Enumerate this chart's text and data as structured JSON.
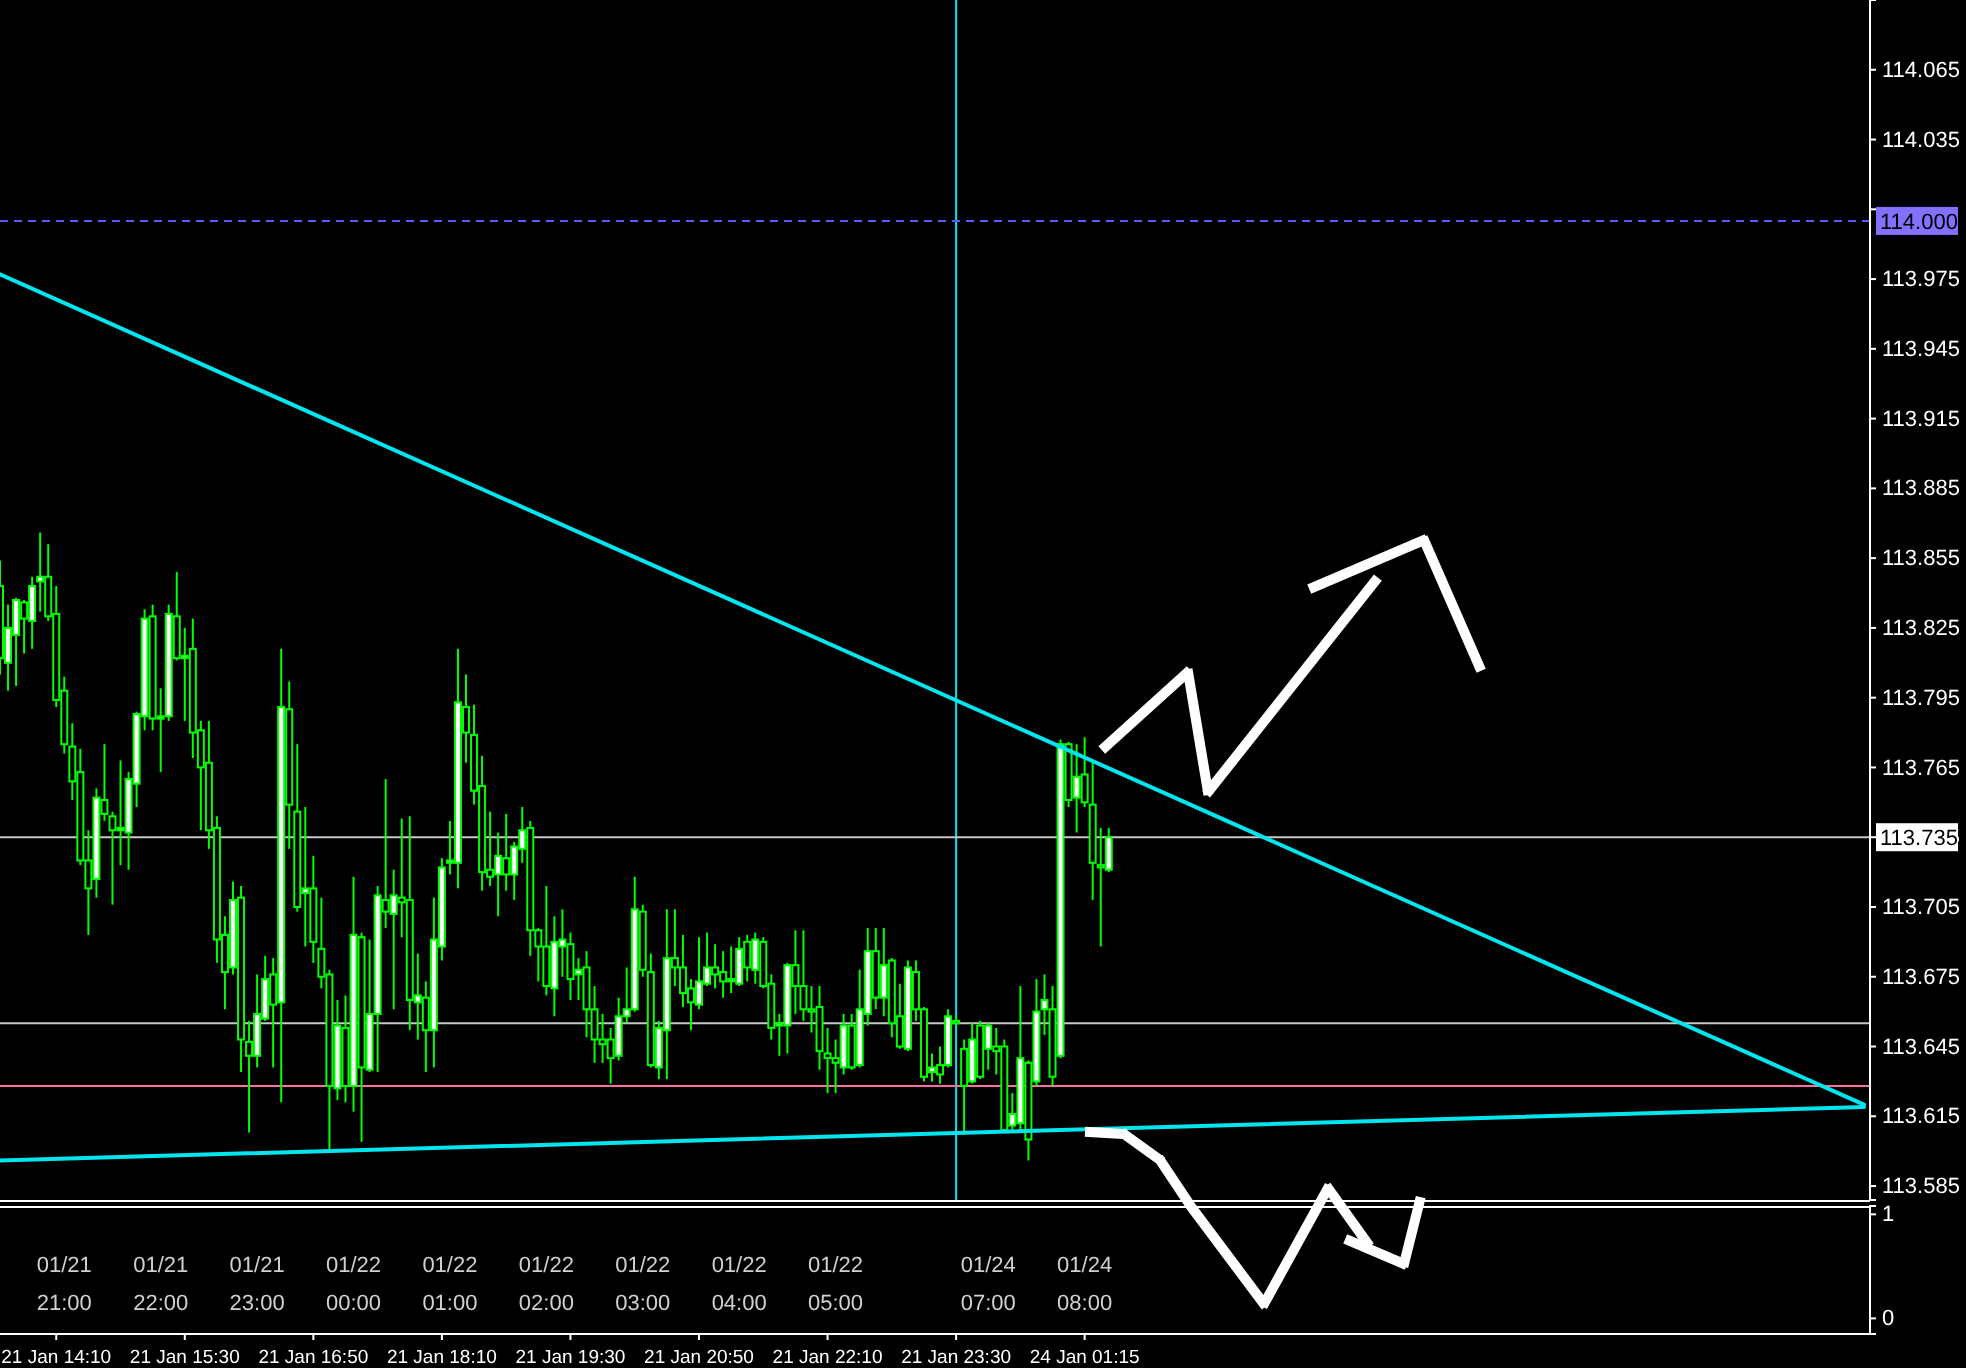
{
  "chart_data": [
    {
      "type": "candlestick",
      "categories": [
        null,
        null,
        null,
        null,
        null,
        null,
        null,
        "21 Jan 14:10",
        null,
        null,
        null,
        null,
        null,
        null,
        null,
        null,
        null,
        null,
        null,
        null,
        null,
        null,
        null,
        "21 Jan 15:30",
        null,
        null,
        null,
        null,
        null,
        null,
        null,
        null,
        null,
        null,
        null,
        null,
        null,
        null,
        null,
        "21 Jan 16:50",
        null,
        null,
        null,
        null,
        null,
        null,
        null,
        null,
        null,
        null,
        null,
        null,
        null,
        null,
        null,
        "21 Jan 18:10",
        null,
        null,
        null,
        null,
        null,
        null,
        null,
        null,
        null,
        null,
        null,
        null,
        null,
        null,
        null,
        "21 Jan 19:30",
        null,
        null,
        null,
        null,
        null,
        null,
        null,
        null,
        null,
        null,
        null,
        null,
        null,
        null,
        null,
        "21 Jan 20:50",
        null,
        null,
        null,
        null,
        null,
        null,
        null,
        null,
        null,
        null,
        null,
        null,
        null,
        null,
        null,
        "21 Jan 22:10",
        null,
        null,
        null,
        null,
        null,
        null,
        null,
        null,
        null,
        null,
        null,
        null,
        null,
        null,
        null,
        "21 Jan 23:30",
        null,
        null,
        null,
        null,
        null,
        null,
        null,
        null,
        null,
        null,
        null,
        null,
        null,
        null,
        null,
        "24 Jan 01:15",
        null,
        null,
        null,
        null,
        null,
        null,
        null,
        null,
        null,
        null,
        null,
        null,
        null,
        null,
        null,
        null,
        null,
        null,
        null,
        null,
        null,
        null,
        null,
        null,
        null,
        null,
        null,
        null,
        null,
        null,
        null,
        null,
        null,
        null,
        null,
        null,
        null,
        null,
        null,
        null,
        null,
        null,
        null,
        null,
        null,
        null,
        null,
        null,
        null,
        null,
        null,
        null,
        null,
        null,
        null,
        null,
        null,
        null,
        null,
        null,
        null,
        null,
        null,
        null,
        null,
        null,
        null,
        null,
        null,
        null,
        null,
        null,
        null,
        null,
        null,
        null,
        null,
        null,
        null,
        null,
        null,
        null,
        null,
        null,
        null,
        null,
        null,
        null,
        null,
        null,
        null,
        null,
        null,
        null,
        null,
        null,
        null
      ],
      "series": [
        {
          "color": "#00ff00",
          "ohlc": [
            [
              113.843,
              113.854,
              113.805,
              113.812
            ],
            [
              113.81,
              113.835,
              113.798,
              113.825
            ],
            [
              113.822,
              113.838,
              113.8,
              113.837
            ],
            [
              113.836,
              113.837,
              113.814,
              113.829
            ],
            [
              113.828,
              113.847,
              113.816,
              113.843
            ],
            [
              113.845,
              113.866,
              113.832,
              113.847
            ],
            [
              113.847,
              113.861,
              113.828,
              113.83
            ],
            [
              113.831,
              113.843,
              113.791,
              113.794
            ],
            [
              113.798,
              113.804,
              113.771,
              113.775
            ],
            [
              113.774,
              113.784,
              113.751,
              113.759
            ],
            [
              113.763,
              113.773,
              113.723,
              113.725
            ],
            [
              113.725,
              113.738,
              113.693,
              113.713
            ],
            [
              113.717,
              113.756,
              113.709,
              113.752
            ],
            [
              113.751,
              113.775,
              113.742,
              113.745
            ],
            [
              113.744,
              113.746,
              113.706,
              113.738
            ],
            [
              113.738,
              113.768,
              113.723,
              113.739
            ],
            [
              113.737,
              113.763,
              113.721,
              113.76
            ],
            [
              113.758,
              113.789,
              113.748,
              113.788
            ],
            [
              113.787,
              113.833,
              113.781,
              113.829
            ],
            [
              113.83,
              113.835,
              113.781,
              113.786
            ],
            [
              113.786,
              113.799,
              113.763,
              113.787
            ],
            [
              113.787,
              113.835,
              113.785,
              113.831
            ],
            [
              113.83,
              113.849,
              113.811,
              113.812
            ],
            [
              113.812,
              113.825,
              113.785,
              113.813
            ],
            [
              113.816,
              113.829,
              113.769,
              113.78
            ],
            [
              113.781,
              113.785,
              113.738,
              113.765
            ],
            [
              113.767,
              113.785,
              113.73,
              113.738
            ],
            [
              113.739,
              113.744,
              113.681,
              113.691
            ],
            [
              113.693,
              113.701,
              113.661,
              113.677
            ],
            [
              113.679,
              113.716,
              113.676,
              113.708
            ],
            [
              113.709,
              113.714,
              113.634,
              113.648
            ],
            [
              113.647,
              113.656,
              113.608,
              113.641
            ],
            [
              113.641,
              113.676,
              113.636,
              113.659
            ],
            [
              113.657,
              113.684,
              113.656,
              113.674
            ],
            [
              113.676,
              113.683,
              113.636,
              113.663
            ],
            [
              113.664,
              113.816,
              113.621,
              113.791
            ],
            [
              113.79,
              113.802,
              113.73,
              113.749
            ],
            [
              113.746,
              113.775,
              113.703,
              113.705
            ],
            [
              113.711,
              113.748,
              113.688,
              113.713
            ],
            [
              113.713,
              113.727,
              113.681,
              113.69
            ],
            [
              113.687,
              113.709,
              113.67,
              113.675
            ],
            [
              113.676,
              113.678,
              113.6,
              113.628
            ],
            [
              113.627,
              113.665,
              113.622,
              113.654
            ],
            [
              113.653,
              113.667,
              113.621,
              113.628
            ],
            [
              113.628,
              113.718,
              113.617,
              113.693
            ],
            [
              113.692,
              113.694,
              113.604,
              113.636
            ],
            [
              113.635,
              113.691,
              113.634,
              113.659
            ],
            [
              113.659,
              113.714,
              113.634,
              113.71
            ],
            [
              113.708,
              113.76,
              113.696,
              113.703
            ],
            [
              113.702,
              113.721,
              113.661,
              113.71
            ],
            [
              113.709,
              113.743,
              113.692,
              113.707
            ],
            [
              113.708,
              113.744,
              113.652,
              113.665
            ],
            [
              113.664,
              113.685,
              113.648,
              113.667
            ],
            [
              113.666,
              113.673,
              113.634,
              113.652
            ],
            [
              113.652,
              113.709,
              113.636,
              113.691
            ],
            [
              113.688,
              113.726,
              113.682,
              113.722
            ],
            [
              113.724,
              113.742,
              113.719,
              113.725
            ],
            [
              113.724,
              113.816,
              113.713,
              113.793
            ],
            [
              113.791,
              113.805,
              113.767,
              113.78
            ],
            [
              113.779,
              113.792,
              113.749,
              113.755
            ],
            [
              113.757,
              113.77,
              113.712,
              113.72
            ],
            [
              113.721,
              113.746,
              113.714,
              113.718
            ],
            [
              113.719,
              113.737,
              113.701,
              113.727
            ],
            [
              113.726,
              113.745,
              113.712,
              113.719
            ],
            [
              113.719,
              113.733,
              113.708,
              113.731
            ],
            [
              113.73,
              113.748,
              113.724,
              113.738
            ],
            [
              113.739,
              113.742,
              113.684,
              113.695
            ],
            [
              113.695,
              113.696,
              113.673,
              113.688
            ],
            [
              113.688,
              113.714,
              113.667,
              113.671
            ],
            [
              113.67,
              113.701,
              113.658,
              113.69
            ],
            [
              113.688,
              113.704,
              113.675,
              113.691
            ],
            [
              113.689,
              113.694,
              113.665,
              113.674
            ],
            [
              113.676,
              113.683,
              113.665,
              113.678
            ],
            [
              113.679,
              113.686,
              113.649,
              113.661
            ],
            [
              113.661,
              113.671,
              113.638,
              113.648
            ],
            [
              113.648,
              113.659,
              113.638,
              113.646
            ],
            [
              113.648,
              113.653,
              113.629,
              113.64
            ],
            [
              113.641,
              113.666,
              113.639,
              113.658
            ],
            [
              113.658,
              113.679,
              113.655,
              113.661
            ],
            [
              113.661,
              113.718,
              113.66,
              113.704
            ],
            [
              113.703,
              113.706,
              113.675,
              113.678
            ],
            [
              113.677,
              113.685,
              113.636,
              113.637
            ],
            [
              113.636,
              113.656,
              113.631,
              113.653
            ],
            [
              113.652,
              113.704,
              113.631,
              113.683
            ],
            [
              113.683,
              113.704,
              113.671,
              113.679
            ],
            [
              113.679,
              113.693,
              113.662,
              113.668
            ],
            [
              113.67,
              113.674,
              113.652,
              113.664
            ],
            [
              113.663,
              113.692,
              113.661,
              113.673
            ],
            [
              113.672,
              113.694,
              113.671,
              113.679
            ],
            [
              113.679,
              113.689,
              113.67,
              113.676
            ],
            [
              113.677,
              113.686,
              113.666,
              113.673
            ],
            [
              113.673,
              113.688,
              113.668,
              113.674
            ],
            [
              113.672,
              113.692,
              113.671,
              113.687
            ],
            [
              113.69,
              113.693,
              113.673,
              113.679
            ],
            [
              113.678,
              113.694,
              113.672,
              113.691
            ],
            [
              113.69,
              113.692,
              113.67,
              113.671
            ],
            [
              113.672,
              113.676,
              113.648,
              113.653
            ],
            [
              113.654,
              113.659,
              113.641,
              113.655
            ],
            [
              113.654,
              113.681,
              113.642,
              113.68
            ],
            [
              113.68,
              113.695,
              113.659,
              113.671
            ],
            [
              113.671,
              113.695,
              113.656,
              113.661
            ],
            [
              113.661,
              113.671,
              113.651,
              113.66
            ],
            [
              113.662,
              113.671,
              113.635,
              113.643
            ],
            [
              113.642,
              113.653,
              113.625,
              113.64
            ],
            [
              113.64,
              113.648,
              113.625,
              113.638
            ],
            [
              113.636,
              113.659,
              113.633,
              113.654
            ],
            [
              113.654,
              113.659,
              113.635,
              113.636
            ],
            [
              113.637,
              113.678,
              113.636,
              113.661
            ],
            [
              113.659,
              113.696,
              113.654,
              113.686
            ],
            [
              113.686,
              113.696,
              113.661,
              113.666
            ],
            [
              113.666,
              113.696,
              113.658,
              113.68
            ],
            [
              113.682,
              113.683,
              113.649,
              113.655
            ],
            [
              113.658,
              113.672,
              113.644,
              113.645
            ],
            [
              113.644,
              113.682,
              113.643,
              113.679
            ],
            [
              113.677,
              113.682,
              113.656,
              113.661
            ],
            [
              113.661,
              113.662,
              113.63,
              113.632
            ],
            [
              113.634,
              113.642,
              113.63,
              113.636
            ],
            [
              113.637,
              113.645,
              113.629,
              113.633
            ],
            [
              113.637,
              113.661,
              113.636,
              113.658
            ],
            [
              113.656,
              113.658,
              113.654,
              113.655
            ],
            [
              113.644,
              113.648,
              113.607,
              113.628
            ],
            [
              113.63,
              113.655,
              113.629,
              113.648
            ],
            [
              113.654,
              113.656,
              113.631,
              113.632
            ],
            [
              113.644,
              113.655,
              113.635,
              113.654
            ],
            [
              113.645,
              113.653,
              113.633,
              113.643
            ],
            [
              113.645,
              113.648,
              113.608,
              113.609
            ],
            [
              113.611,
              113.625,
              113.608,
              113.616
            ],
            [
              113.612,
              113.671,
              113.608,
              113.64
            ],
            [
              113.638,
              113.639,
              113.596,
              113.605
            ],
            [
              113.63,
              113.674,
              113.628,
              113.66
            ],
            [
              113.661,
              113.676,
              113.65,
              113.665
            ],
            [
              113.661,
              113.671,
              113.628,
              113.632
            ],
            [
              113.641,
              113.777,
              113.64,
              113.775
            ],
            [
              113.775,
              113.776,
              113.748,
              113.751
            ],
            [
              113.752,
              113.775,
              113.737,
              113.761
            ],
            [
              113.762,
              113.778,
              113.748,
              113.75
            ],
            [
              113.749,
              113.767,
              113.708,
              113.724
            ],
            [
              113.723,
              113.739,
              113.688,
              113.722
            ],
            [
              113.721,
              113.739,
              113.72,
              113.735
            ],
            null,
            null,
            null,
            null,
            null,
            null,
            null,
            null,
            null,
            null,
            null,
            null,
            null,
            null,
            null,
            null,
            null,
            null,
            null,
            null,
            null,
            null,
            null,
            null,
            null,
            null,
            null,
            null,
            null,
            null,
            null,
            null,
            null,
            null,
            null,
            null,
            null,
            null,
            null,
            null,
            null,
            null,
            null,
            null,
            null,
            null,
            null,
            null,
            null,
            null,
            null,
            null,
            null,
            null,
            null,
            null,
            null,
            null,
            null,
            null,
            null,
            null,
            null,
            null,
            null,
            null,
            null,
            null,
            null,
            null,
            null,
            null,
            null,
            null,
            null,
            null,
            null,
            null,
            null,
            null,
            null,
            null,
            null,
            null,
            null,
            null,
            null,
            null,
            null,
            null,
            null,
            null,
            null,
            null
          ]
        },
        {
          "type": "line",
          "color": "#00e5ee",
          "values": [
            113.977,
            null,
            null,
            null,
            null,
            null,
            null,
            null,
            null,
            null,
            null,
            null,
            null,
            null,
            null,
            null,
            null,
            null,
            null,
            null,
            null,
            null,
            null,
            null,
            null,
            null,
            null,
            null,
            null,
            null,
            null,
            null,
            null,
            null,
            null,
            null,
            null,
            null,
            null,
            null,
            null,
            null,
            null,
            null,
            null,
            null,
            null,
            null,
            null,
            null,
            null,
            null,
            null,
            null,
            null,
            null,
            null,
            null,
            null,
            null,
            null,
            null,
            null,
            null,
            null,
            null,
            null,
            null,
            null,
            null,
            null,
            null,
            null,
            null,
            null,
            null,
            null,
            null,
            null,
            null,
            null,
            null,
            null,
            null,
            null,
            null,
            null,
            null,
            null,
            null,
            null,
            null,
            null,
            null,
            null,
            null,
            null,
            null,
            null,
            null,
            null,
            null,
            null,
            null,
            null,
            null,
            null,
            null,
            null,
            null,
            null,
            null,
            null,
            null,
            null,
            null,
            null,
            null,
            null,
            null,
            null,
            null,
            null,
            null,
            null,
            null,
            null,
            null,
            null,
            null,
            null,
            null,
            null,
            null,
            null,
            null,
            null,
            null,
            null,
            null,
            null,
            null,
            null,
            null,
            null,
            null,
            null,
            null,
            null,
            null,
            null,
            null,
            null,
            null,
            null,
            null,
            null,
            null,
            null,
            null,
            null,
            null,
            null,
            null,
            null,
            null,
            null,
            null,
            null,
            null,
            null,
            null,
            null,
            null,
            null,
            null,
            null,
            null,
            null,
            null,
            null,
            null,
            null,
            null,
            null,
            null,
            null,
            null,
            null,
            null,
            null,
            null,
            null,
            null,
            null,
            null,
            null,
            null,
            null,
            null,
            null,
            null,
            null,
            null,
            null,
            null,
            null,
            null,
            null,
            null,
            null,
            null,
            null,
            null,
            null,
            null,
            null,
            null,
            null,
            null,
            null,
            null,
            null,
            null,
            null,
            null,
            null,
            null,
            null,
            null,
            null,
            null,
            113.62
          ]
        },
        {
          "type": "line",
          "color": "#00e5ee",
          "values": [
            113.596,
            null,
            null,
            null,
            null,
            null,
            null,
            null,
            null,
            null,
            null,
            null,
            null,
            null,
            null,
            null,
            null,
            null,
            null,
            null,
            null,
            null,
            null,
            null,
            null,
            null,
            null,
            null,
            null,
            null,
            null,
            null,
            null,
            null,
            null,
            null,
            null,
            null,
            null,
            null,
            null,
            null,
            null,
            null,
            null,
            null,
            null,
            null,
            null,
            null,
            null,
            null,
            null,
            null,
            null,
            null,
            null,
            null,
            null,
            null,
            null,
            null,
            null,
            null,
            null,
            null,
            null,
            null,
            null,
            null,
            null,
            null,
            null,
            null,
            null,
            null,
            null,
            null,
            null,
            null,
            null,
            null,
            null,
            null,
            null,
            null,
            null,
            null,
            null,
            null,
            null,
            null,
            null,
            null,
            null,
            null,
            null,
            null,
            null,
            null,
            null,
            null,
            null,
            null,
            null,
            null,
            null,
            null,
            null,
            null,
            null,
            null,
            null,
            null,
            null,
            null,
            null,
            null,
            null,
            null,
            null,
            null,
            null,
            null,
            null,
            null,
            null,
            null,
            null,
            null,
            null,
            null,
            null,
            null,
            null,
            null,
            null,
            null,
            null,
            null,
            null,
            null,
            null,
            null,
            null,
            null,
            null,
            null,
            null,
            null,
            null,
            null,
            null,
            null,
            null,
            null,
            null,
            null,
            null,
            null,
            null,
            null,
            null,
            null,
            null,
            null,
            null,
            null,
            null,
            null,
            null,
            null,
            null,
            null,
            null,
            null,
            null,
            null,
            null,
            null,
            null,
            null,
            null,
            null,
            null,
            null,
            null,
            null,
            null,
            null,
            null,
            null,
            null,
            null,
            null,
            null,
            null,
            null,
            null,
            null,
            null,
            null,
            null,
            null,
            null,
            null,
            null,
            null,
            null,
            null,
            null,
            null,
            null,
            null,
            null,
            null,
            null,
            null,
            null,
            null,
            null,
            null,
            null,
            null,
            null,
            null,
            null,
            null,
            null,
            null,
            null,
            null,
            113.619
          ]
        }
      ],
      "ylim": [
        113.579,
        114.095
      ],
      "yticks": [
        113.585,
        113.615,
        113.645,
        113.675,
        113.705,
        113.735,
        113.765,
        113.795,
        113.825,
        113.855,
        113.885,
        113.915,
        113.945,
        113.975,
        {
          "value": 114.005,
          "label": null
        },
        114.035,
        114.065,
        {
          "value": 114.095,
          "label": null
        }
      ],
      "ref_lines": [
        {
          "axis": "x",
          "value": "21 Jan 23:30",
          "color": "#00e5ee"
        },
        {
          "axis": "y",
          "value": 114.0,
          "label": "114.000",
          "color": "#5a5aff",
          "line_style": "dashed"
        },
        {
          "axis": "y",
          "value": 113.735,
          "label": "113.735",
          "color": "#c8c8c8"
        },
        {
          "axis": "y",
          "value": 113.655,
          "color": "#c8c8c8"
        },
        {
          "axis": "y",
          "value": 113.628,
          "color": "#ff6fa0"
        }
      ]
    },
    {
      "type": "line",
      "ylim": [
        -0.15,
        1.08
      ],
      "yticks": [
        0,
        1
      ],
      "categories": [
        null,
        null,
        null,
        null,
        null,
        null,
        null,
        null,
        "01/21 21:00",
        null,
        null,
        null,
        null,
        null,
        null,
        null,
        null,
        null,
        null,
        null,
        "01/21 22:00",
        null,
        null,
        null,
        null,
        null,
        null,
        null,
        null,
        null,
        null,
        null,
        "01/21 23:00",
        null,
        null,
        null,
        null,
        null,
        null,
        null,
        null,
        null,
        null,
        null,
        "01/22 00:00",
        null,
        null,
        null,
        null,
        null,
        null,
        null,
        null,
        null,
        null,
        null,
        "01/22 01:00",
        null,
        null,
        null,
        null,
        null,
        null,
        null,
        null,
        null,
        null,
        null,
        "01/22 02:00",
        null,
        null,
        null,
        null,
        null,
        null,
        null,
        null,
        null,
        null,
        null,
        "01/22 03:00",
        null,
        null,
        null,
        null,
        null,
        null,
        null,
        null,
        null,
        null,
        null,
        "01/22 04:00",
        null,
        null,
        null,
        null,
        null,
        null,
        null,
        null,
        null,
        null,
        null,
        "01/22 05:00",
        null,
        null,
        null,
        null,
        null,
        null,
        null,
        null,
        null,
        null,
        null,
        null,
        null,
        null,
        null,
        null,
        null,
        null,
        "01/24 07:00",
        null,
        null,
        null,
        null,
        null,
        null,
        null,
        null,
        null,
        null,
        null,
        "01/24 08:00",
        null,
        null,
        null,
        null,
        null,
        null,
        null,
        null,
        null,
        null,
        null,
        null,
        null,
        null,
        null,
        null,
        null,
        null,
        null,
        null,
        null,
        null,
        null,
        null,
        null,
        null,
        null,
        null,
        null,
        null,
        null,
        null,
        null,
        null,
        null,
        null,
        null,
        null,
        null,
        null,
        null,
        null,
        null,
        null,
        null,
        null,
        null,
        null,
        null,
        null,
        null,
        null,
        null,
        null,
        null,
        null,
        null,
        null,
        null,
        null,
        null,
        null,
        null,
        null,
        null,
        null,
        null,
        null,
        null,
        null,
        null,
        null,
        null,
        null,
        null,
        null,
        null,
        null,
        null,
        null,
        null,
        null,
        null,
        null,
        null,
        null,
        null,
        null,
        null,
        null,
        null,
        null,
        null,
        null,
        null,
        null,
        null
      ]
    }
  ]
}
